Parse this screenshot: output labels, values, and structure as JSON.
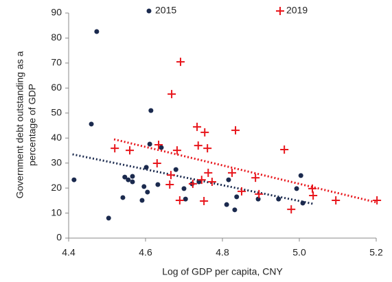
{
  "chart_data": {
    "type": "scatter",
    "xlabel": "Log of GDP per capita, CNY",
    "ylabel": [
      "Government debt outstanding as a",
      "percentage of GDP"
    ],
    "xlim": [
      4.4,
      5.2
    ],
    "ylim": [
      0,
      90
    ],
    "xticks": [
      4.4,
      4.6,
      4.8,
      {
        "value": 5,
        "label": "5.0"
      },
      5.2
    ],
    "yticks": [
      0,
      10,
      20,
      30,
      40,
      50,
      60,
      70,
      80,
      90
    ],
    "grid": false,
    "series": [
      {
        "name": "2015",
        "color": "#1b2a4e",
        "marker": "circle",
        "x": [
          4.414,
          4.459,
          4.473,
          4.504,
          4.541,
          4.546,
          4.555,
          4.566,
          4.566,
          4.591,
          4.596,
          4.602,
          4.605,
          4.611,
          4.614,
          4.632,
          4.641,
          4.679,
          4.7,
          4.704,
          4.721,
          4.739,
          4.811,
          4.816,
          4.832,
          4.837,
          4.893,
          4.946,
          4.993,
          5.004,
          5.009
        ],
        "values": [
          23.3,
          45.6,
          82.6,
          8.0,
          16.2,
          24.4,
          23.3,
          22.5,
          24.7,
          15.1,
          20.6,
          28.3,
          18.4,
          37.6,
          51.0,
          21.4,
          36.2,
          27.4,
          19.8,
          15.6,
          21.7,
          22.5,
          13.4,
          23.3,
          11.3,
          16.5,
          15.6,
          15.6,
          19.8,
          25.0,
          14.0
        ],
        "trendline": {
          "x": [
            4.41,
            5.036
          ],
          "values": [
            33.5,
            13.7
          ]
        }
      },
      {
        "name": "2019",
        "color": "#e8151b",
        "marker": "plus",
        "x": [
          4.52,
          4.559,
          4.634,
          4.63,
          4.663,
          4.668,
          4.666,
          4.682,
          4.691,
          4.689,
          4.723,
          4.734,
          4.737,
          4.746,
          4.754,
          4.752,
          4.761,
          4.763,
          4.773,
          4.834,
          4.825,
          4.85,
          4.886,
          4.895,
          4.961,
          4.979,
          5.034,
          5.036,
          5.095,
          5.202
        ],
        "values": [
          35.9,
          35.1,
          37.3,
          29.9,
          21.4,
          57.6,
          25.2,
          35.1,
          70.5,
          15.1,
          21.7,
          44.5,
          37.0,
          23.3,
          42.3,
          14.8,
          35.9,
          26.1,
          22.5,
          43.1,
          26.1,
          18.7,
          24.1,
          17.6,
          35.4,
          11.5,
          19.8,
          17.0,
          15.1,
          15.1
        ],
        "trendline": {
          "x": [
            4.518,
            5.2
          ],
          "values": [
            39.5,
            14.3
          ]
        }
      }
    ]
  }
}
